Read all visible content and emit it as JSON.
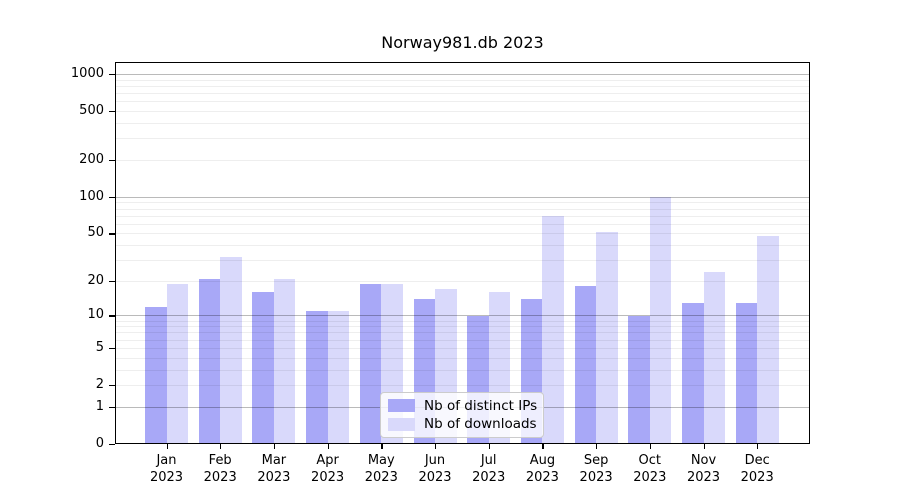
{
  "chart_data": {
    "type": "bar",
    "title": "Norway981.db 2023",
    "x_year": "2023",
    "categories": [
      "Jan",
      "Feb",
      "Mar",
      "Apr",
      "May",
      "Jun",
      "Jul",
      "Aug",
      "Sep",
      "Oct",
      "Nov",
      "Dec"
    ],
    "series": [
      {
        "name": "Nb of distinct IPs",
        "color": "#a8a8f7",
        "values": [
          12,
          21,
          16,
          11,
          19,
          14,
          10,
          14,
          18,
          10,
          13,
          13
        ]
      },
      {
        "name": "Nb of downloads",
        "color": "#d9d9fb",
        "values": [
          19,
          32,
          21,
          11,
          19,
          17,
          16,
          70,
          51,
          100,
          24,
          48
        ]
      }
    ],
    "y_scale": "log10(1+v)",
    "y_ticks": [
      0,
      1,
      2,
      5,
      10,
      20,
      50,
      100,
      200,
      500,
      1000
    ],
    "y_major_gridlines": [
      1,
      10,
      100,
      1000
    ],
    "ylim": [
      0,
      1250
    ],
    "grid": true,
    "legend_position": "lower center"
  },
  "colors": {
    "background": "#ffffff",
    "bar_distinct_ips": "#a8a8f7",
    "bar_downloads": "#d9d9fb",
    "axis": "#000000",
    "text": "#000000",
    "legend_border": "#cccccc"
  }
}
